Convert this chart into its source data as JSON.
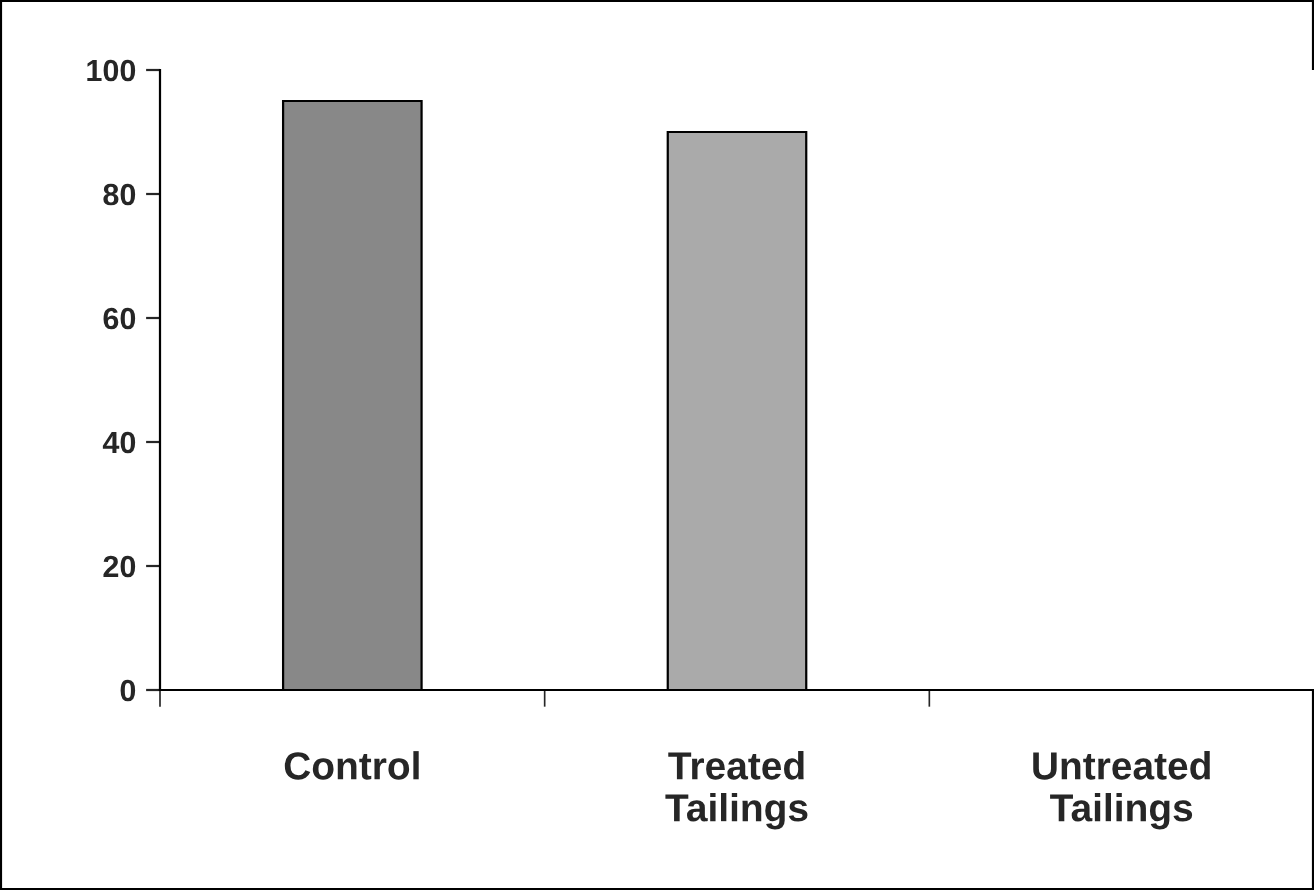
{
  "chart_data": {
    "type": "bar",
    "categories": [
      "Control",
      "Treated Tailings",
      "Untreated Tailings"
    ],
    "values": [
      95,
      90,
      null
    ],
    "colors": [
      "#888888",
      "#aaaaaa",
      "#aaaaaa"
    ],
    "ylim": [
      0,
      100
    ],
    "yticks": [
      0,
      20,
      40,
      60,
      80,
      100
    ],
    "grid": false,
    "legend": false
  }
}
